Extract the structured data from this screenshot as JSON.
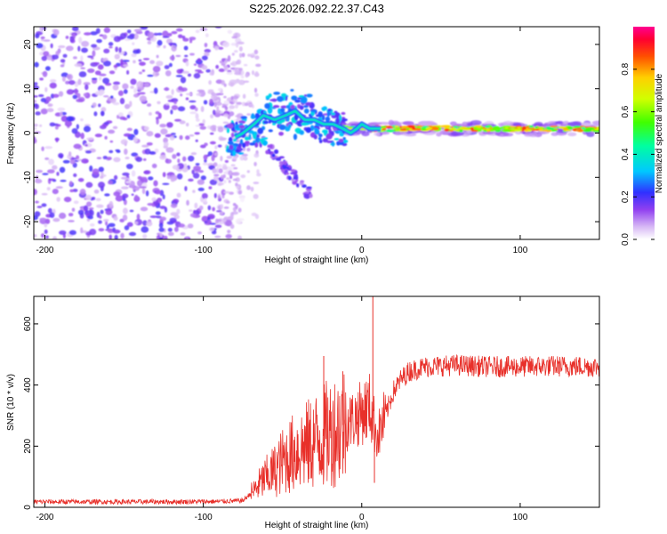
{
  "title": "S225.2026.092.22.37.C43",
  "chart_data": [
    {
      "type": "heatmap",
      "panel": "spectrogram",
      "xlabel": "Height of straight line (km)",
      "ylabel": "Frequency (Hz)",
      "xlim": [
        -207,
        150
      ],
      "ylim": [
        -24,
        24
      ],
      "xticks": [
        -200,
        -100,
        0,
        100
      ],
      "yticks": [
        -20,
        -10,
        0,
        10,
        20
      ],
      "colorbar": {
        "label": "Normalized spectral amplitude",
        "range": [
          0,
          1
        ],
        "ticks": [
          0.0,
          0.2,
          0.4,
          0.6,
          0.8
        ]
      },
      "features": [
        {
          "name": "noise",
          "x_range": [
            -207,
            -75
          ],
          "freq_range": [
            -24,
            24
          ],
          "amplitude": 0.15
        },
        {
          "name": "transition",
          "x_range": [
            -85,
            -10
          ],
          "freq_center": 2,
          "amplitude": 0.3
        },
        {
          "name": "carrier line",
          "x_range": [
            -10,
            150
          ],
          "freq_center": 1,
          "amplitude": 0.9
        }
      ]
    },
    {
      "type": "line",
      "panel": "snr",
      "xlabel": "Height of straight line (km)",
      "ylabel": "SNR (10 * v/v)",
      "xlim": [
        -207,
        150
      ],
      "ylim": [
        0,
        690
      ],
      "xticks": [
        -200,
        -100,
        0,
        100
      ],
      "yticks": [
        0,
        200,
        400,
        600
      ],
      "series": [
        {
          "name": "SNR",
          "color": "#e8302a",
          "x": [
            -207,
            -180,
            -150,
            -120,
            -90,
            -75,
            -68,
            -62,
            -55,
            -50,
            -45,
            -40,
            -35,
            -30,
            -25,
            -20,
            -15,
            -10,
            -5,
            0,
            5,
            10,
            15,
            20,
            25,
            30,
            40,
            60,
            80,
            100,
            120,
            150
          ],
          "y": [
            18,
            18,
            18,
            18,
            19,
            22,
            55,
            90,
            120,
            150,
            170,
            190,
            200,
            215,
            230,
            245,
            260,
            275,
            290,
            310,
            330,
            230,
            300,
            380,
            420,
            445,
            460,
            465,
            460,
            460,
            462,
            460
          ],
          "spikes": [
            {
              "x": -60,
              "y": 100
            },
            {
              "x": -24,
              "y": 495
            },
            {
              "x": -12,
              "y": 445
            },
            {
              "x": 7,
              "y": 690
            },
            {
              "x": 8,
              "y": 80
            }
          ]
        }
      ]
    }
  ]
}
